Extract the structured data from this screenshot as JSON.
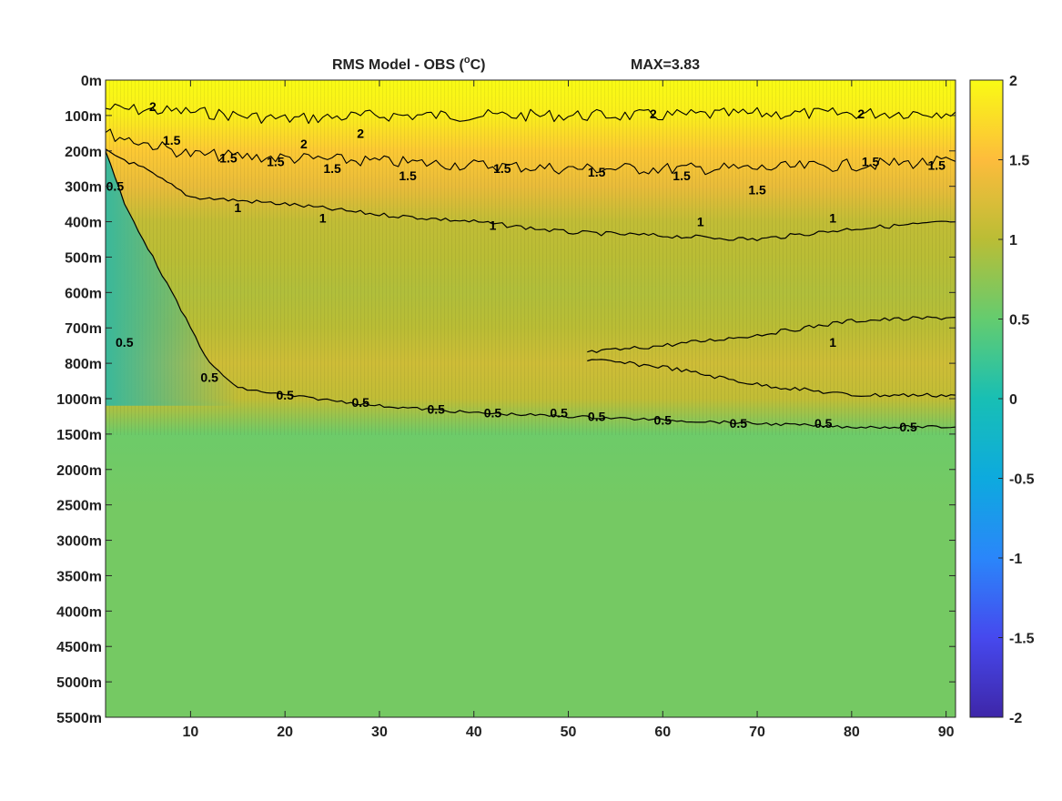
{
  "chart_data": {
    "type": "heatmap",
    "title": "RMS Model - OBS (",
    "title_super": "o",
    "title_unit": "C)",
    "max_label": "MAX=3.83",
    "x": {
      "range": [
        1,
        91
      ],
      "ticks": [
        10,
        20,
        30,
        40,
        50,
        60,
        70,
        80,
        90
      ],
      "tick_labels": [
        "10",
        "20",
        "30",
        "40",
        "50",
        "60",
        "70",
        "80",
        "90"
      ]
    },
    "y": {
      "orientation": "depth-down",
      "tick_labels": [
        "0m",
        "100m",
        "200m",
        "300m",
        "400m",
        "500m",
        "600m",
        "700m",
        "800m",
        "1000m",
        "1500m",
        "2000m",
        "2500m",
        "3000m",
        "3500m",
        "4000m",
        "4500m",
        "5000m",
        "5500m"
      ]
    },
    "colorbar": {
      "range": [
        -2,
        2
      ],
      "ticks": [
        2,
        1.5,
        1,
        0.5,
        0,
        -0.5,
        -1,
        -1.5,
        -2
      ],
      "tick_labels": [
        "2",
        "1.5",
        "1",
        "0.5",
        "0",
        "-0.5",
        "-1",
        "-1.5",
        "-2"
      ],
      "colormap": "parula"
    },
    "field_profile": {
      "depth_index": [
        0,
        1,
        2,
        3,
        4,
        5,
        6,
        7,
        8,
        9,
        10,
        12,
        14,
        16,
        18
      ],
      "rms_value": [
        2.0,
        1.9,
        1.6,
        1.35,
        1.05,
        1.0,
        0.95,
        1.0,
        1.15,
        1.05,
        0.55,
        0.6,
        0.6,
        0.6,
        0.6
      ]
    },
    "contours": {
      "levels": [
        2,
        1.5,
        1,
        0.5
      ],
      "lines": [
        {
          "level": 2,
          "x": [
            1,
            10,
            20,
            30,
            40,
            50,
            60,
            70,
            80,
            91
          ],
          "depth_index": [
            0.8,
            0.9,
            1.1,
            1.0,
            1.0,
            1.0,
            1.0,
            0.95,
            0.95,
            0.9
          ]
        },
        {
          "level": 1.5,
          "x": [
            1,
            10,
            20,
            30,
            40,
            50,
            60,
            70,
            80,
            91
          ],
          "depth_index": [
            1.5,
            2.1,
            2.2,
            2.3,
            2.4,
            2.5,
            2.5,
            2.5,
            2.4,
            2.3
          ]
        },
        {
          "level": 1,
          "x": [
            1,
            5,
            10,
            20,
            30,
            40,
            50,
            60,
            70,
            80,
            91
          ],
          "depth_index": [
            2.0,
            2.5,
            3.3,
            3.5,
            3.8,
            4.0,
            4.3,
            4.4,
            4.5,
            4.2,
            4.0
          ]
        },
        {
          "level": 1,
          "x": [
            52,
            60,
            70,
            80,
            91
          ],
          "depth_index": [
            7.7,
            7.5,
            7.2,
            6.8,
            6.7
          ]
        },
        {
          "level": 1,
          "x": [
            52,
            60,
            70,
            80,
            91
          ],
          "depth_index": [
            7.9,
            8.1,
            8.6,
            8.9,
            8.9
          ]
        },
        {
          "level": 0.5,
          "x": [
            1,
            3,
            6,
            9,
            12,
            15,
            20,
            30,
            40,
            50,
            60,
            70,
            80,
            91
          ],
          "depth_index": [
            2.0,
            3.5,
            5.0,
            6.5,
            8.0,
            8.7,
            8.9,
            9.2,
            9.4,
            9.5,
            9.6,
            9.7,
            9.8,
            9.8
          ]
        }
      ],
      "labels": [
        {
          "text": "2",
          "x": 6,
          "depth_index": 0.75
        },
        {
          "text": "2",
          "x": 22,
          "depth_index": 1.8
        },
        {
          "text": "2",
          "x": 28,
          "depth_index": 1.5
        },
        {
          "text": "2",
          "x": 59,
          "depth_index": 0.95
        },
        {
          "text": "2",
          "x": 81,
          "depth_index": 0.95
        },
        {
          "text": "1.5",
          "x": 8,
          "depth_index": 1.7
        },
        {
          "text": "1.5",
          "x": 14,
          "depth_index": 2.2
        },
        {
          "text": "1.5",
          "x": 19,
          "depth_index": 2.3
        },
        {
          "text": "1.5",
          "x": 25,
          "depth_index": 2.5
        },
        {
          "text": "1.5",
          "x": 33,
          "depth_index": 2.7
        },
        {
          "text": "1.5",
          "x": 43,
          "depth_index": 2.5
        },
        {
          "text": "1.5",
          "x": 53,
          "depth_index": 2.6
        },
        {
          "text": "1.5",
          "x": 62,
          "depth_index": 2.7
        },
        {
          "text": "1.5",
          "x": 70,
          "depth_index": 3.1
        },
        {
          "text": "1.5",
          "x": 82,
          "depth_index": 2.3
        },
        {
          "text": "1.5",
          "x": 89,
          "depth_index": 2.4
        },
        {
          "text": "1",
          "x": 15,
          "depth_index": 3.6
        },
        {
          "text": "1",
          "x": 24,
          "depth_index": 3.9
        },
        {
          "text": "1",
          "x": 42,
          "depth_index": 4.1
        },
        {
          "text": "1",
          "x": 64,
          "depth_index": 4.0
        },
        {
          "text": "1",
          "x": 78,
          "depth_index": 3.9
        },
        {
          "text": "1",
          "x": 78,
          "depth_index": 7.4
        },
        {
          "text": "0.5",
          "x": 2,
          "depth_index": 3.0
        },
        {
          "text": "0.5",
          "x": 3,
          "depth_index": 7.4
        },
        {
          "text": "0.5",
          "x": 12,
          "depth_index": 8.4
        },
        {
          "text": "0.5",
          "x": 20,
          "depth_index": 8.9
        },
        {
          "text": "0.5",
          "x": 28,
          "depth_index": 9.1
        },
        {
          "text": "0.5",
          "x": 36,
          "depth_index": 9.3
        },
        {
          "text": "0.5",
          "x": 42,
          "depth_index": 9.4
        },
        {
          "text": "0.5",
          "x": 49,
          "depth_index": 9.4
        },
        {
          "text": "0.5",
          "x": 53,
          "depth_index": 9.5
        },
        {
          "text": "0.5",
          "x": 60,
          "depth_index": 9.6
        },
        {
          "text": "0.5",
          "x": 68,
          "depth_index": 9.7
        },
        {
          "text": "0.5",
          "x": 77,
          "depth_index": 9.7
        },
        {
          "text": "0.5",
          "x": 86,
          "depth_index": 9.8
        }
      ]
    }
  }
}
